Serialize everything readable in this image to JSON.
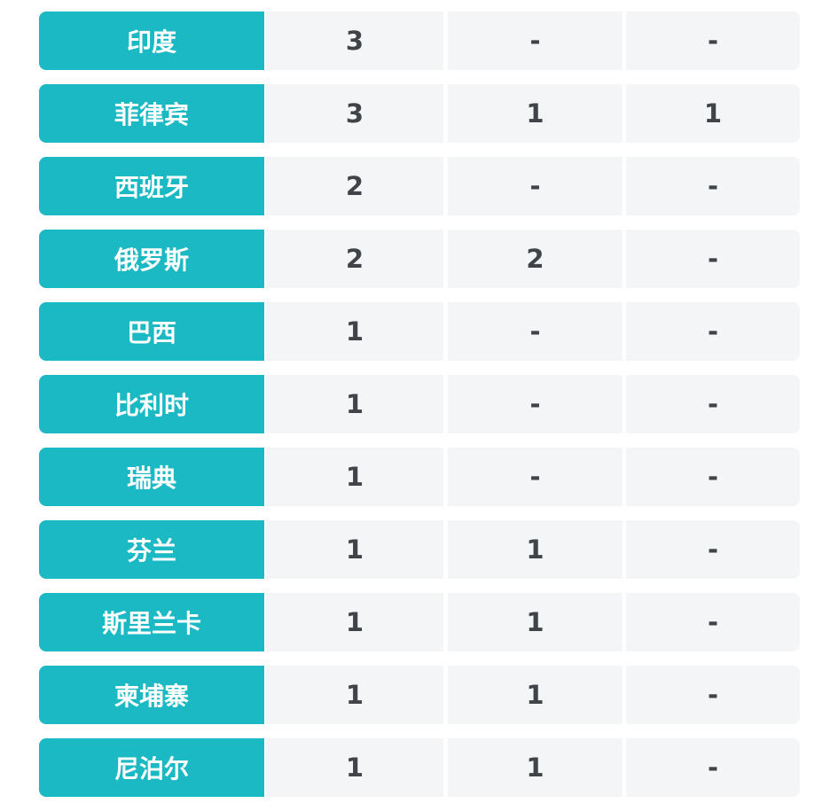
{
  "colors": {
    "name_bg": "#1bb9c4",
    "cell_bg": "#f4f5f7",
    "text": "#404348"
  },
  "rows": [
    {
      "name": "印度",
      "v1": "3",
      "v2": "-",
      "v3": "-"
    },
    {
      "name": "菲律宾",
      "v1": "3",
      "v2": "1",
      "v3": "1"
    },
    {
      "name": "西班牙",
      "v1": "2",
      "v2": "-",
      "v3": "-"
    },
    {
      "name": "俄罗斯",
      "v1": "2",
      "v2": "2",
      "v3": "-"
    },
    {
      "name": "巴西",
      "v1": "1",
      "v2": "-",
      "v3": "-"
    },
    {
      "name": "比利时",
      "v1": "1",
      "v2": "-",
      "v3": "-"
    },
    {
      "name": "瑞典",
      "v1": "1",
      "v2": "-",
      "v3": "-"
    },
    {
      "name": "芬兰",
      "v1": "1",
      "v2": "1",
      "v3": "-"
    },
    {
      "name": "斯里兰卡",
      "v1": "1",
      "v2": "1",
      "v3": "-"
    },
    {
      "name": "柬埔寨",
      "v1": "1",
      "v2": "1",
      "v3": "-"
    },
    {
      "name": "尼泊尔",
      "v1": "1",
      "v2": "1",
      "v3": "-"
    }
  ]
}
